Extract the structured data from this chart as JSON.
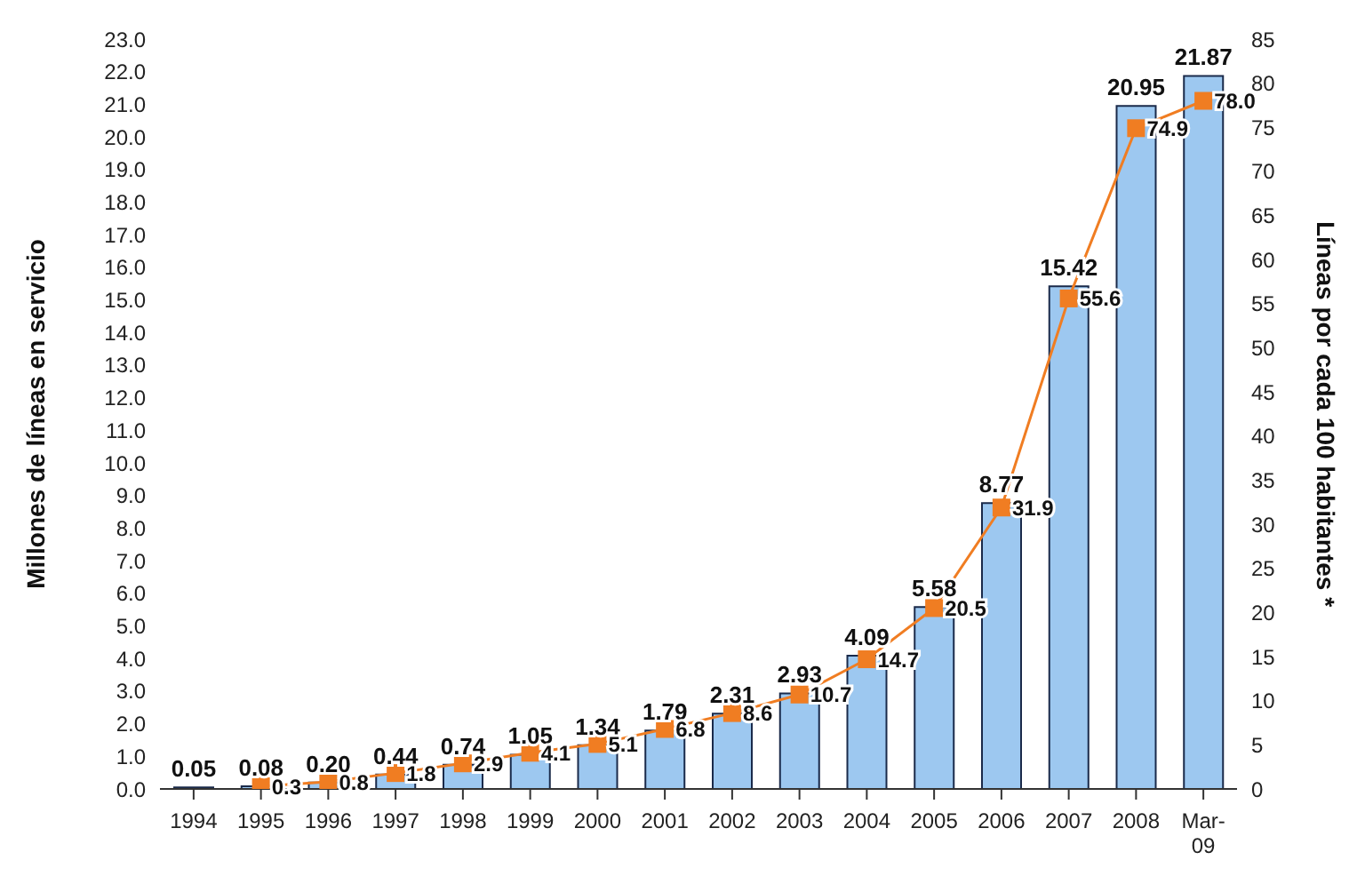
{
  "chart_data": {
    "type": "bar",
    "categories": [
      "1994",
      "1995",
      "1996",
      "1997",
      "1998",
      "1999",
      "2000",
      "2001",
      "2002",
      "2003",
      "2004",
      "2005",
      "2006",
      "2007",
      "2008",
      "Mar-09"
    ],
    "ylabel": "Millones de líneas en servicio",
    "y2label": "Líneas por cada 100 habitantes *",
    "series": [
      {
        "color": "#9dc8f0",
        "values": [
          0.05,
          0.08,
          0.2,
          0.44,
          0.74,
          1.05,
          1.34,
          1.79,
          2.31,
          2.93,
          4.09,
          5.58,
          8.77,
          15.42,
          20.95,
          21.87
        ],
        "value_labels": [
          "0.05",
          "0.08",
          "0.20",
          "0.44",
          "0.74",
          "1.05",
          "1.34",
          "1.79",
          "2.31",
          "2.93",
          "4.09",
          "5.58",
          "8.77",
          "15.42",
          "20.95",
          "21.87"
        ]
      },
      {
        "type": "line",
        "axis": "y2",
        "color": "#f07d22",
        "marker": "square",
        "values": [
          null,
          0.3,
          0.8,
          1.8,
          2.9,
          4.1,
          5.1,
          6.8,
          8.6,
          10.7,
          14.7,
          20.5,
          31.9,
          55.6,
          74.9,
          78.0
        ],
        "value_labels": [
          null,
          "0.3",
          "0.8",
          "1.8",
          "2.9",
          "4.1",
          "5.1",
          "6.8",
          "8.6",
          "10.7",
          "14.7",
          "20.5",
          "31.9",
          "55.6",
          "74.9",
          "78.0"
        ]
      }
    ],
    "ylim": [
      0,
      23
    ],
    "yticks": [
      {
        "value": 0,
        "label": "0.0"
      },
      {
        "value": 1,
        "label": "1.0"
      },
      {
        "value": 2,
        "label": "2.0"
      },
      {
        "value": 3,
        "label": "3.0"
      },
      {
        "value": 4,
        "label": "4.0"
      },
      {
        "value": 5,
        "label": "5.0"
      },
      {
        "value": 6,
        "label": "6.0"
      },
      {
        "value": 7,
        "label": "7.0"
      },
      {
        "value": 8,
        "label": "8.0"
      },
      {
        "value": 9,
        "label": "9.0"
      },
      {
        "value": 10,
        "label": "10.0"
      },
      {
        "value": 11,
        "label": "11.0"
      },
      {
        "value": 12,
        "label": "12.0"
      },
      {
        "value": 13,
        "label": "13.0"
      },
      {
        "value": 14,
        "label": "14.0"
      },
      {
        "value": 15,
        "label": "15.0"
      },
      {
        "value": 16,
        "label": "16.0"
      },
      {
        "value": 17,
        "label": "17.0"
      },
      {
        "value": 18,
        "label": "18.0"
      },
      {
        "value": 19,
        "label": "19.0"
      },
      {
        "value": 20,
        "label": "20.0"
      },
      {
        "value": 21,
        "label": "21.0"
      },
      {
        "value": 22,
        "label": "22.0"
      },
      {
        "value": 23,
        "label": "23.0"
      }
    ],
    "y2lim": [
      0,
      85
    ],
    "y2ticks": [
      0,
      5,
      10,
      15,
      20,
      25,
      30,
      35,
      40,
      45,
      50,
      55,
      60,
      65,
      70,
      75,
      80,
      85
    ],
    "grid": false,
    "legend": false
  }
}
